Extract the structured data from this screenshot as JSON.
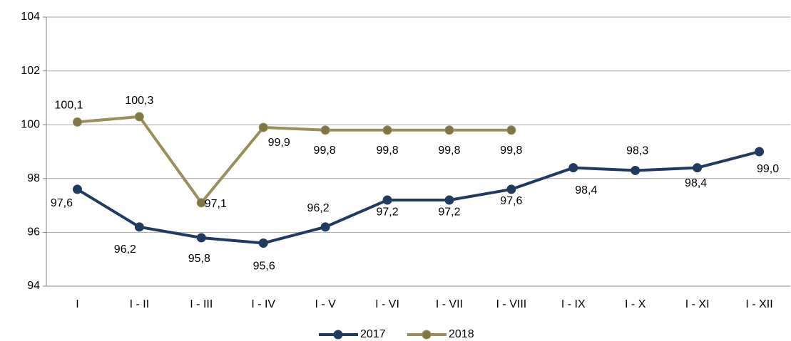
{
  "chart_data": {
    "type": "line",
    "categories": [
      "I",
      "I - II",
      "I - III",
      "I - IV",
      "I - V",
      "I - VI",
      "I - VII",
      "I - VIII",
      "I - IX",
      "I - X",
      "I - XI",
      "I - XII"
    ],
    "series": [
      {
        "name": "2017",
        "color": "#1f3a63",
        "marker_color": "#203a60",
        "values": [
          97.6,
          96.2,
          95.8,
          95.6,
          96.2,
          97.2,
          97.2,
          97.6,
          98.4,
          98.3,
          98.4,
          99.0
        ],
        "value_labels": [
          "97,6",
          "96,2",
          "95,8",
          "95,6",
          "96,2",
          "97,2",
          "97,2",
          "97,6",
          "98,4",
          "98,3",
          "98,4",
          "99,0"
        ]
      },
      {
        "name": "2018",
        "color": "#9a8f5a",
        "marker_color": "#7f7646",
        "values": [
          100.1,
          100.3,
          97.1,
          99.9,
          99.8,
          99.8,
          99.8,
          99.8,
          null,
          null,
          null,
          null
        ],
        "value_labels": [
          "100,1",
          "100,3",
          "97,1",
          "99,9",
          "99,8",
          "99,8",
          "99,8",
          "99,8",
          null,
          null,
          null,
          null
        ]
      }
    ],
    "ylim": [
      94,
      104
    ],
    "yticks": [
      94,
      96,
      98,
      100,
      102,
      104
    ],
    "grid": true,
    "legend": "bottom"
  }
}
